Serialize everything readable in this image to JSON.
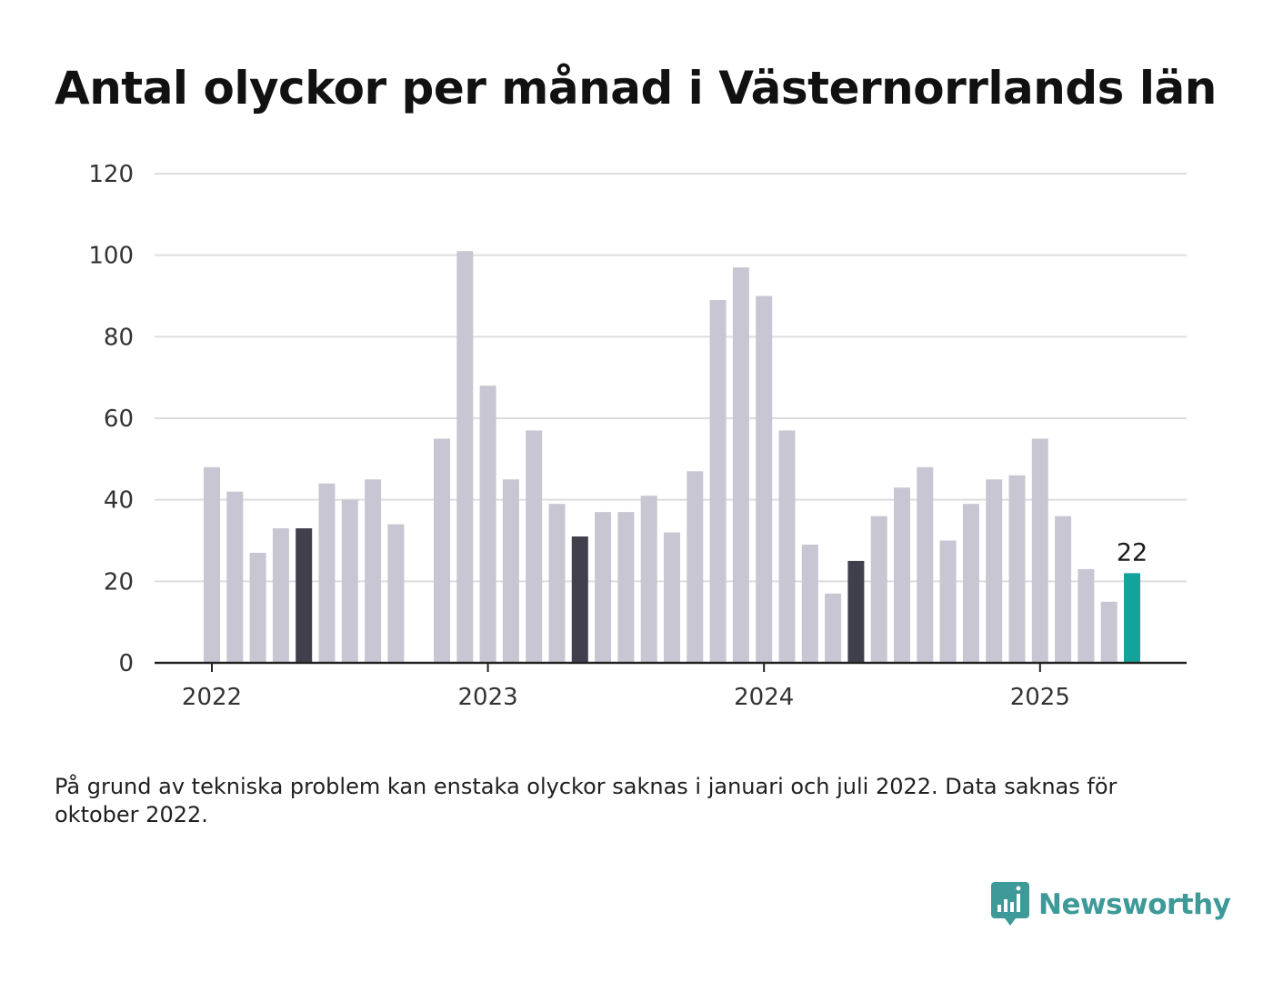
{
  "title": "Antal olyckor per månad i Västernorrlands län",
  "note": "På grund av tekniska problem kan enstaka olyckor saknas i januari och juli 2022. Data saknas för oktober 2022.",
  "brand": {
    "name": "Newsworthy",
    "icon": "newsworthy-logo-icon"
  },
  "colors": {
    "bar": "#c8c6d2",
    "bar_highlight_same_month": "#403f4c",
    "bar_latest": "#14a39a",
    "grid": "#dddddd",
    "axis": "#222222",
    "brand": "#3d9a98"
  },
  "chart_data": {
    "type": "bar",
    "title": "Antal olyckor per månad i Västernorrlands län",
    "xlabel": "",
    "ylabel": "",
    "ylim": [
      0,
      120
    ],
    "yticks": [
      0,
      20,
      40,
      60,
      80,
      100,
      120
    ],
    "x_tick_labels": [
      {
        "month": "2022-01",
        "label": "2022"
      },
      {
        "month": "2023-01",
        "label": "2023"
      },
      {
        "month": "2024-01",
        "label": "2024"
      },
      {
        "month": "2025-01",
        "label": "2025"
      }
    ],
    "grid": true,
    "legend": "none",
    "categories": [
      "2022-01",
      "2022-02",
      "2022-03",
      "2022-04",
      "2022-05",
      "2022-06",
      "2022-07",
      "2022-08",
      "2022-09",
      "2022-10",
      "2022-11",
      "2022-12",
      "2023-01",
      "2023-02",
      "2023-03",
      "2023-04",
      "2023-05",
      "2023-06",
      "2023-07",
      "2023-08",
      "2023-09",
      "2023-10",
      "2023-11",
      "2023-12",
      "2024-01",
      "2024-02",
      "2024-03",
      "2024-04",
      "2024-05",
      "2024-06",
      "2024-07",
      "2024-08",
      "2024-09",
      "2024-10",
      "2024-11",
      "2024-12",
      "2025-01",
      "2025-02",
      "2025-03",
      "2025-04",
      "2025-05"
    ],
    "values": [
      48,
      42,
      27,
      33,
      33,
      44,
      40,
      45,
      34,
      null,
      55,
      101,
      68,
      45,
      57,
      39,
      31,
      37,
      37,
      41,
      32,
      47,
      89,
      97,
      90,
      57,
      29,
      17,
      25,
      36,
      43,
      48,
      30,
      39,
      45,
      46,
      55,
      36,
      23,
      15,
      22
    ],
    "highlight_same_month": [
      "2022-05",
      "2023-05",
      "2024-05"
    ],
    "latest": "2025-05",
    "annotations": [
      {
        "month": "2025-05",
        "text": "22"
      }
    ]
  }
}
